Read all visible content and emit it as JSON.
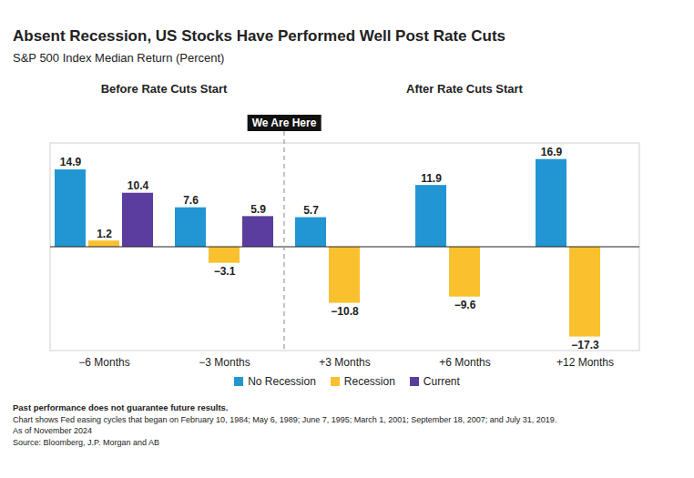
{
  "chart_data": {
    "type": "bar",
    "title": "Absent Recession, US Stocks Have Performed Well Post Rate Cuts",
    "subtitle": "S&P 500 Index Median Return (Percent)",
    "categories": [
      "−6 Months",
      "−3 Months",
      "+3 Months",
      "+6 Months",
      "+12 Months"
    ],
    "series": [
      {
        "name": "No Recession",
        "color": "#2196d3",
        "values": [
          14.9,
          7.6,
          5.7,
          11.9,
          16.9
        ],
        "value_labels": [
          "14.9",
          "7.6",
          "5.7",
          "11.9",
          "16.9"
        ]
      },
      {
        "name": "Recession",
        "color": "#f9c12e",
        "values": [
          1.2,
          -3.1,
          -10.8,
          -9.6,
          -17.3
        ],
        "value_labels": [
          "1.2",
          "−3.1",
          "−10.8",
          "−9.6",
          "−17.3"
        ]
      },
      {
        "name": "Current",
        "color": "#5a3d9e",
        "values": [
          10.4,
          5.9,
          null,
          null,
          null
        ],
        "value_labels": [
          "10.4",
          "5.9",
          null,
          null,
          null
        ]
      }
    ],
    "ylim": [
      -20,
      20
    ],
    "yticks": [
      0
    ],
    "tick_labels": "x",
    "data_labels": true,
    "legend": "bottom",
    "groups": [
      {
        "label": "Before Rate Cuts Start",
        "categories": [
          "−6 Months",
          "−3 Months"
        ]
      },
      {
        "label": "After Rate Cuts Start",
        "categories": [
          "+3 Months",
          "+6 Months",
          "+12 Months"
        ]
      }
    ],
    "annotations": [
      {
        "text": "We Are Here",
        "between": [
          "−3 Months",
          "+3 Months"
        ]
      }
    ],
    "notes": [
      "Past performance does not guarantee future results.",
      "Chart shows Fed easing cycles that began on February 10, 1984; May 6, 1989; June 7, 1995; March 1, 2001; September 18, 2007; and July 31, 2019.",
      "As of November 2024",
      "Source: Bloomberg, J.P. Morgan and AB"
    ]
  }
}
